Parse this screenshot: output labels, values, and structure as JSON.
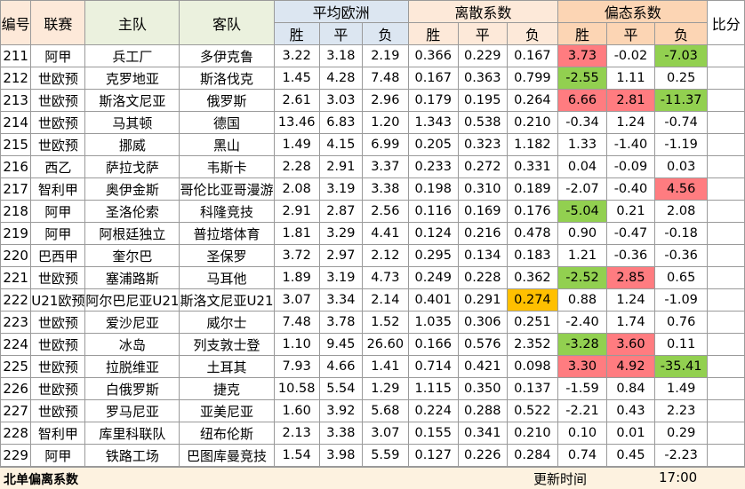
{
  "headers": {
    "id": "编号",
    "league": "联赛",
    "home": "主队",
    "away": "客队",
    "avg_group": "平均欧洲",
    "disp_group": "离散系数",
    "bias_group": "偏态系数",
    "ratio": "比分",
    "win": "胜",
    "draw": "平",
    "loss": "负"
  },
  "rows": [
    {
      "id": "211",
      "league": "阿甲",
      "home": "兵工厂",
      "away": "多伊克鲁",
      "avg": [
        "3.22",
        "3.18",
        "2.19"
      ],
      "disp": [
        "0.366",
        "0.229",
        "0.167"
      ],
      "bias": [
        "3.73",
        "-0.02",
        "-7.03"
      ],
      "hl": {
        "bias0": "red",
        "bias2": "green"
      }
    },
    {
      "id": "212",
      "league": "世欧预",
      "home": "克罗地亚",
      "away": "斯洛伐克",
      "avg": [
        "1.45",
        "4.28",
        "7.48"
      ],
      "disp": [
        "0.167",
        "0.363",
        "0.799"
      ],
      "bias": [
        "-2.55",
        "1.11",
        "0.25"
      ],
      "hl": {
        "bias0": "green"
      }
    },
    {
      "id": "213",
      "league": "世欧预",
      "home": "斯洛文尼亚",
      "away": "俄罗斯",
      "avg": [
        "2.61",
        "3.03",
        "2.96"
      ],
      "disp": [
        "0.179",
        "0.195",
        "0.264"
      ],
      "bias": [
        "6.66",
        "2.81",
        "-11.37"
      ],
      "hl": {
        "bias0": "red",
        "bias1": "red",
        "bias2": "green"
      }
    },
    {
      "id": "214",
      "league": "世欧预",
      "home": "马其顿",
      "away": "德国",
      "avg": [
        "13.46",
        "6.83",
        "1.20"
      ],
      "disp": [
        "1.343",
        "0.538",
        "0.210"
      ],
      "bias": [
        "-0.34",
        "1.24",
        "-0.74"
      ],
      "hl": {}
    },
    {
      "id": "215",
      "league": "世欧预",
      "home": "挪威",
      "away": "黑山",
      "avg": [
        "1.49",
        "4.15",
        "6.99"
      ],
      "disp": [
        "0.205",
        "0.323",
        "1.182"
      ],
      "bias": [
        "1.33",
        "-1.40",
        "-1.19"
      ],
      "hl": {}
    },
    {
      "id": "216",
      "league": "西乙",
      "home": "萨拉戈萨",
      "away": "韦斯卡",
      "avg": [
        "2.28",
        "2.91",
        "3.37"
      ],
      "disp": [
        "0.233",
        "0.272",
        "0.331"
      ],
      "bias": [
        "0.04",
        "-0.09",
        "0.03"
      ],
      "hl": {}
    },
    {
      "id": "217",
      "league": "智利甲",
      "home": "奥伊金斯",
      "away": "哥伦比亚哥漫游",
      "avg": [
        "2.08",
        "3.19",
        "3.38"
      ],
      "disp": [
        "0.198",
        "0.310",
        "0.189"
      ],
      "bias": [
        "-2.07",
        "-0.40",
        "4.56"
      ],
      "hl": {
        "bias2": "red"
      }
    },
    {
      "id": "218",
      "league": "阿甲",
      "home": "圣洛伦索",
      "away": "科隆竞技",
      "avg": [
        "2.91",
        "2.87",
        "2.56"
      ],
      "disp": [
        "0.116",
        "0.169",
        "0.176"
      ],
      "bias": [
        "-5.04",
        "0.21",
        "2.08"
      ],
      "hl": {
        "bias0": "green"
      }
    },
    {
      "id": "219",
      "league": "阿甲",
      "home": "阿根廷独立",
      "away": "普拉塔体育",
      "avg": [
        "1.81",
        "3.29",
        "4.41"
      ],
      "disp": [
        "0.124",
        "0.216",
        "0.478"
      ],
      "bias": [
        "0.90",
        "-0.47",
        "-0.18"
      ],
      "hl": {}
    },
    {
      "id": "220",
      "league": "巴西甲",
      "home": "奎尔巴",
      "away": "圣保罗",
      "avg": [
        "3.72",
        "2.97",
        "2.12"
      ],
      "disp": [
        "0.295",
        "0.134",
        "0.183"
      ],
      "bias": [
        "1.21",
        "-0.36",
        "-0.36"
      ],
      "hl": {}
    },
    {
      "id": "221",
      "league": "世欧预",
      "home": "塞浦路斯",
      "away": "马耳他",
      "avg": [
        "1.89",
        "3.19",
        "4.73"
      ],
      "disp": [
        "0.249",
        "0.228",
        "0.362"
      ],
      "bias": [
        "-2.52",
        "2.85",
        "0.65"
      ],
      "hl": {
        "bias0": "green",
        "bias1": "red"
      }
    },
    {
      "id": "222",
      "league": "U21欧预",
      "home": "阿尔巴尼亚U21",
      "away": "斯洛文尼亚U21",
      "avg": [
        "3.07",
        "3.34",
        "2.14"
      ],
      "disp": [
        "0.401",
        "0.291",
        "0.274"
      ],
      "bias": [
        "0.88",
        "1.24",
        "-1.09"
      ],
      "hl": {
        "disp2": "orange"
      }
    },
    {
      "id": "223",
      "league": "世欧预",
      "home": "爱沙尼亚",
      "away": "威尔士",
      "avg": [
        "7.48",
        "3.78",
        "1.52"
      ],
      "disp": [
        "1.035",
        "0.306",
        "0.251"
      ],
      "bias": [
        "-2.40",
        "1.74",
        "0.76"
      ],
      "hl": {}
    },
    {
      "id": "224",
      "league": "世欧预",
      "home": "冰岛",
      "away": "列支敦士登",
      "avg": [
        "1.10",
        "9.45",
        "26.60"
      ],
      "disp": [
        "0.166",
        "0.576",
        "2.352"
      ],
      "bias": [
        "-3.28",
        "3.60",
        "0.11"
      ],
      "hl": {
        "bias0": "green",
        "bias1": "red"
      }
    },
    {
      "id": "225",
      "league": "世欧预",
      "home": "拉脱维亚",
      "away": "土耳其",
      "avg": [
        "7.93",
        "4.66",
        "1.41"
      ],
      "disp": [
        "0.714",
        "0.421",
        "0.098"
      ],
      "bias": [
        "3.30",
        "4.92",
        "-35.41"
      ],
      "hl": {
        "bias0": "red",
        "bias1": "red",
        "bias2": "green"
      }
    },
    {
      "id": "226",
      "league": "世欧预",
      "home": "白俄罗斯",
      "away": "捷克",
      "avg": [
        "10.58",
        "5.54",
        "1.29"
      ],
      "disp": [
        "1.115",
        "0.350",
        "0.137"
      ],
      "bias": [
        "-1.59",
        "0.84",
        "1.49"
      ],
      "hl": {}
    },
    {
      "id": "227",
      "league": "世欧预",
      "home": "罗马尼亚",
      "away": "亚美尼亚",
      "avg": [
        "1.60",
        "3.92",
        "5.68"
      ],
      "disp": [
        "0.224",
        "0.288",
        "0.522"
      ],
      "bias": [
        "-2.21",
        "0.43",
        "2.23"
      ],
      "hl": {}
    },
    {
      "id": "228",
      "league": "智利甲",
      "home": "库里科联队",
      "away": "纽布伦斯",
      "avg": [
        "2.13",
        "3.38",
        "3.07"
      ],
      "disp": [
        "0.155",
        "0.341",
        "0.210"
      ],
      "bias": [
        "0.10",
        "0.01",
        "0.29"
      ],
      "hl": {}
    },
    {
      "id": "229",
      "league": "阿甲",
      "home": "铁路工场",
      "away": "巴图库曼竞技",
      "avg": [
        "1.54",
        "3.98",
        "5.59"
      ],
      "disp": [
        "0.127",
        "0.226",
        "0.284"
      ],
      "bias": [
        "0.74",
        "0.45",
        "-2.23"
      ],
      "hl": {}
    }
  ],
  "footer": {
    "label": "北单偏离系数",
    "update_label": "更新时间",
    "time": "17:00"
  },
  "colors": {
    "red": "#ff7c80",
    "green": "#92d050",
    "orange": "#ffc000"
  }
}
